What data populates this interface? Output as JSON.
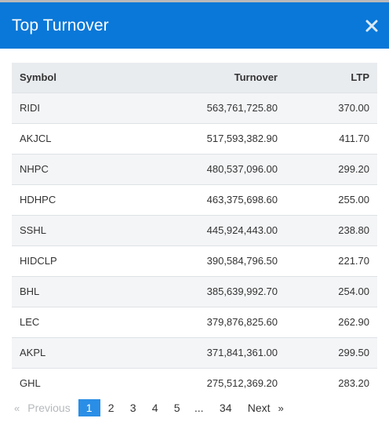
{
  "modal": {
    "title": "Top Turnover",
    "close_icon": "close-icon"
  },
  "table": {
    "headers": {
      "symbol": "Symbol",
      "turnover": "Turnover",
      "ltp": "LTP"
    },
    "rows": [
      {
        "symbol": "RIDI",
        "turnover": "563,761,725.80",
        "ltp": "370.00"
      },
      {
        "symbol": "AKJCL",
        "turnover": "517,593,382.90",
        "ltp": "411.70"
      },
      {
        "symbol": "NHPC",
        "turnover": "480,537,096.00",
        "ltp": "299.20"
      },
      {
        "symbol": "HDHPC",
        "turnover": "463,375,698.60",
        "ltp": "255.00"
      },
      {
        "symbol": "SSHL",
        "turnover": "445,924,443.00",
        "ltp": "238.80"
      },
      {
        "symbol": "HIDCLP",
        "turnover": "390,584,796.50",
        "ltp": "221.70"
      },
      {
        "symbol": "BHL",
        "turnover": "385,639,992.70",
        "ltp": "254.00"
      },
      {
        "symbol": "LEC",
        "turnover": "379,876,825.60",
        "ltp": "262.90"
      },
      {
        "symbol": "AKPL",
        "turnover": "371,841,361.00",
        "ltp": "299.50"
      },
      {
        "symbol": "GHL",
        "turnover": "275,512,369.20",
        "ltp": "283.20"
      }
    ]
  },
  "pagination": {
    "prev_chevron": "«",
    "prev_label": "Previous",
    "pages": [
      "1",
      "2",
      "3",
      "4",
      "5"
    ],
    "ellipsis": "...",
    "last_page": "34",
    "next_label": "Next",
    "next_chevron": "»",
    "current": "1"
  },
  "colors": {
    "header_bg": "#0a78d8",
    "active_page_bg": "#2a8ee6",
    "table_head_bg": "#e9ecef",
    "row_stripe_bg": "#f4f5f7"
  }
}
